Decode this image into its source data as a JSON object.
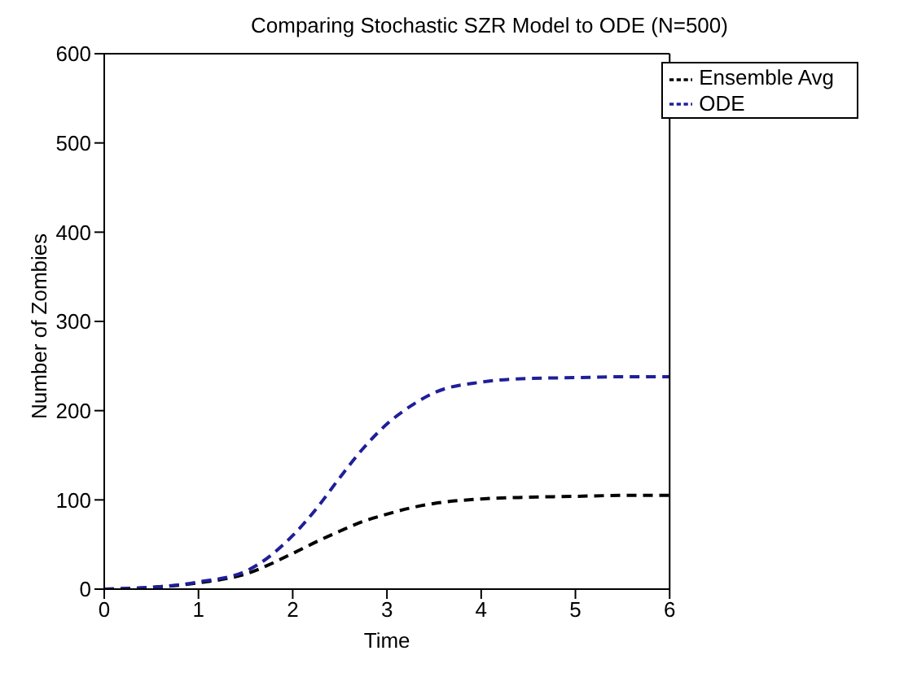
{
  "chart_data": {
    "type": "line",
    "title": "Comparing Stochastic SZR Model to ODE (N=500)",
    "xlabel": "Time",
    "ylabel": "Number of Zombies",
    "x": [
      0,
      0.5,
      1,
      1.5,
      2,
      2.25,
      2.5,
      2.75,
      3,
      3.25,
      3.5,
      4,
      4.5,
      5,
      5.5,
      6
    ],
    "series": [
      {
        "name": "Ensemble Avg",
        "color": "#000000",
        "values": [
          0,
          2,
          7,
          17,
          40,
          53,
          65,
          76,
          84,
          91,
          96,
          101,
          103,
          104,
          105,
          105
        ]
      },
      {
        "name": "ODE",
        "color": "#1f1f99",
        "values": [
          0,
          2,
          8,
          20,
          60,
          90,
          125,
          158,
          185,
          205,
          220,
          232,
          236,
          237,
          238,
          238
        ]
      }
    ],
    "xlim": [
      0,
      6
    ],
    "xticks": [
      0,
      1,
      2,
      3,
      4,
      5,
      6
    ],
    "ylim": [
      0,
      600
    ],
    "yticks": [
      0,
      100,
      200,
      300,
      400,
      500,
      600
    ],
    "legend": "top right",
    "marker": "none",
    "line_style": "dashed"
  }
}
